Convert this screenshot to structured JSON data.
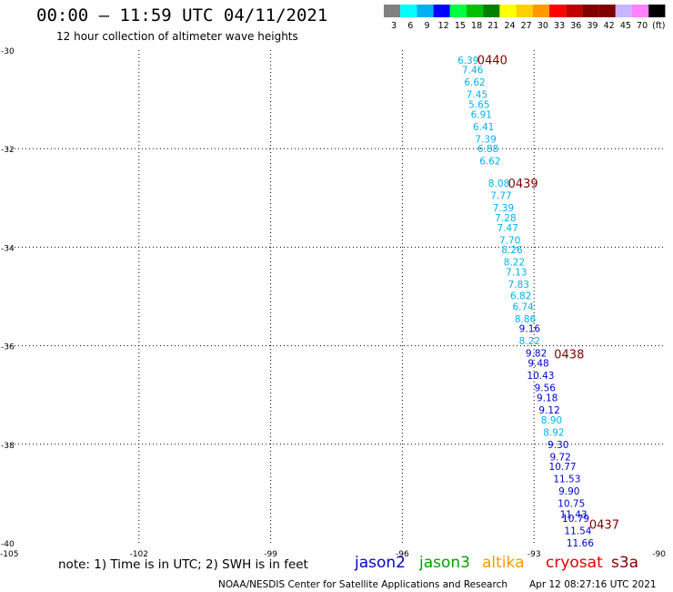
{
  "header": {
    "title": "00:00 – 11:59 UTC 04/11/2021",
    "subtitle": "12 hour collection of altimeter wave heights"
  },
  "legend_scale": {
    "labels": [
      "3",
      "6",
      "9",
      "12",
      "15",
      "18",
      "21",
      "24",
      "27",
      "30",
      "33",
      "36",
      "39",
      "42",
      "45",
      "70",
      "(ft)"
    ],
    "colors": [
      "#808080",
      "#00ffff",
      "#00b0f0",
      "#0000ff",
      "#00ff40",
      "#00c000",
      "#008000",
      "#ffff00",
      "#ffd000",
      "#ff9900",
      "#ff0000",
      "#c00000",
      "#800000",
      "#800000",
      "#c8b4ff",
      "#ff80ff",
      "#000000"
    ]
  },
  "satellites": [
    {
      "name": "jason2",
      "color": "#0000cc"
    },
    {
      "name": "jason3",
      "color": "#00a000"
    },
    {
      "name": "altika",
      "color": "#ff9900"
    },
    {
      "name": "cryosat",
      "color": "#dd0000"
    },
    {
      "name": "s3a",
      "color": "#800000"
    }
  ],
  "note": "note: 1) Time is in UTC; 2) SWH is in feet",
  "footer": {
    "credit": "NOAA/NESDIS Center for Satellite Applications and Research",
    "timestamp": "Apr 12 08:27:16 UTC 2021"
  },
  "chart_data": {
    "type": "scatter",
    "xlim": [
      -105,
      -90
    ],
    "ylim": [
      -40,
      -30
    ],
    "x_ticks": [
      -105,
      -102,
      -99,
      -96,
      -93,
      -90
    ],
    "y_ticks": [
      -30,
      -32,
      -34,
      -36,
      -38,
      -40
    ],
    "x_tick_labels": [
      "-105",
      "-102",
      "-99",
      "-96",
      "-93",
      "-90"
    ],
    "y_tick_labels": [
      "-30",
      "-32",
      "-34",
      "-36",
      "-38",
      "-40"
    ],
    "grid": true,
    "time_labels": [
      {
        "text": "0440",
        "lon": -93.95,
        "lat": -30.18
      },
      {
        "text": "0439",
        "lon": -93.25,
        "lat": -32.68
      },
      {
        "text": "0438",
        "lon": -92.2,
        "lat": -36.15
      },
      {
        "text": "0437",
        "lon": -91.4,
        "lat": -39.6
      }
    ],
    "points": [
      {
        "lon": -94.5,
        "lat": -30.2,
        "value": "6.39",
        "color": "#00b0f0"
      },
      {
        "lon": -94.4,
        "lat": -30.4,
        "value": "7.46",
        "color": "#00b0f0"
      },
      {
        "lon": -94.35,
        "lat": -30.65,
        "value": "6.62",
        "color": "#00b0f0"
      },
      {
        "lon": -94.3,
        "lat": -30.9,
        "value": "7.45",
        "color": "#00b0f0"
      },
      {
        "lon": -94.25,
        "lat": -31.1,
        "value": "5.65",
        "color": "#00b0f0"
      },
      {
        "lon": -94.2,
        "lat": -31.3,
        "value": "6.91",
        "color": "#00b0f0"
      },
      {
        "lon": -94.15,
        "lat": -31.55,
        "value": "6.41",
        "color": "#00b0f0"
      },
      {
        "lon": -94.1,
        "lat": -31.8,
        "value": "7.39",
        "color": "#00b0f0"
      },
      {
        "lon": -94.05,
        "lat": -32.0,
        "value": "6.88",
        "color": "#00b0f0"
      },
      {
        "lon": -94.0,
        "lat": -32.25,
        "value": "6.62",
        "color": "#00b0f0"
      },
      {
        "lon": -93.8,
        "lat": -32.7,
        "value": "8.08",
        "color": "#00b0f0"
      },
      {
        "lon": -93.75,
        "lat": -32.95,
        "value": "7.77",
        "color": "#00b0f0"
      },
      {
        "lon": -93.7,
        "lat": -33.2,
        "value": "7.39",
        "color": "#00b0f0"
      },
      {
        "lon": -93.65,
        "lat": -33.4,
        "value": "7.28",
        "color": "#00b0f0"
      },
      {
        "lon": -93.6,
        "lat": -33.6,
        "value": "7.47",
        "color": "#00b0f0"
      },
      {
        "lon": -93.55,
        "lat": -33.85,
        "value": "7.70",
        "color": "#00b0f0"
      },
      {
        "lon": -93.5,
        "lat": -34.05,
        "value": "8.26",
        "color": "#00b0f0"
      },
      {
        "lon": -93.45,
        "lat": -34.3,
        "value": "8.22",
        "color": "#00b0f0"
      },
      {
        "lon": -93.4,
        "lat": -34.5,
        "value": "7.13",
        "color": "#00b0f0"
      },
      {
        "lon": -93.35,
        "lat": -34.75,
        "value": "7.83",
        "color": "#00b0f0"
      },
      {
        "lon": -93.3,
        "lat": -34.98,
        "value": "6.82",
        "color": "#00b0f0"
      },
      {
        "lon": -93.25,
        "lat": -35.2,
        "value": "6.74",
        "color": "#00b0f0"
      },
      {
        "lon": -93.2,
        "lat": -35.45,
        "value": "8.86",
        "color": "#00b0f0"
      },
      {
        "lon": -93.1,
        "lat": -35.65,
        "value": "9.16",
        "color": "#0000cc"
      },
      {
        "lon": -93.1,
        "lat": -35.9,
        "value": "8.22",
        "color": "#00b0f0"
      },
      {
        "lon": -92.95,
        "lat": -36.15,
        "value": "9.82",
        "color": "#0000cc"
      },
      {
        "lon": -92.9,
        "lat": -36.35,
        "value": "9.48",
        "color": "#0000cc"
      },
      {
        "lon": -92.85,
        "lat": -36.6,
        "value": "10.43",
        "color": "#0000cc"
      },
      {
        "lon": -92.75,
        "lat": -36.85,
        "value": "9.56",
        "color": "#0000cc"
      },
      {
        "lon": -92.7,
        "lat": -37.05,
        "value": "9.18",
        "color": "#0000cc"
      },
      {
        "lon": -92.65,
        "lat": -37.3,
        "value": "9.12",
        "color": "#0000cc"
      },
      {
        "lon": -92.6,
        "lat": -37.5,
        "value": "8.90",
        "color": "#00b0f0"
      },
      {
        "lon": -92.55,
        "lat": -37.75,
        "value": "8.92",
        "color": "#00b0f0"
      },
      {
        "lon": -92.45,
        "lat": -38.0,
        "value": "9.30",
        "color": "#0000cc"
      },
      {
        "lon": -92.4,
        "lat": -38.25,
        "value": "9.72",
        "color": "#0000cc"
      },
      {
        "lon": -92.35,
        "lat": -38.45,
        "value": "10.77",
        "color": "#0000cc"
      },
      {
        "lon": -92.25,
        "lat": -38.7,
        "value": "11.53",
        "color": "#0000cc"
      },
      {
        "lon": -92.2,
        "lat": -38.95,
        "value": "9.90",
        "color": "#0000cc"
      },
      {
        "lon": -92.15,
        "lat": -39.2,
        "value": "10.75",
        "color": "#0000cc"
      },
      {
        "lon": -92.1,
        "lat": -39.42,
        "value": "11.43",
        "color": "#0000cc"
      },
      {
        "lon": -92.05,
        "lat": -39.5,
        "value": "10.79",
        "color": "#0000cc"
      },
      {
        "lon": -92.0,
        "lat": -39.75,
        "value": "11.54",
        "color": "#0000cc"
      },
      {
        "lon": -91.95,
        "lat": -40.0,
        "value": "11.66",
        "color": "#0000cc"
      }
    ]
  }
}
